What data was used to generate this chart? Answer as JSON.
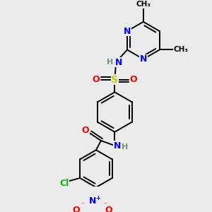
{
  "bg_color": "#ebebeb",
  "atom_colors": {
    "C": "#000000",
    "N": "#0000ff",
    "O": "#ff0000",
    "S": "#cccc00",
    "Cl": "#00bb00",
    "H": "#6a9a6a"
  },
  "bond_color": "#000000",
  "figsize": [
    3.0,
    3.0
  ],
  "dpi": 100,
  "lw": 1.4
}
